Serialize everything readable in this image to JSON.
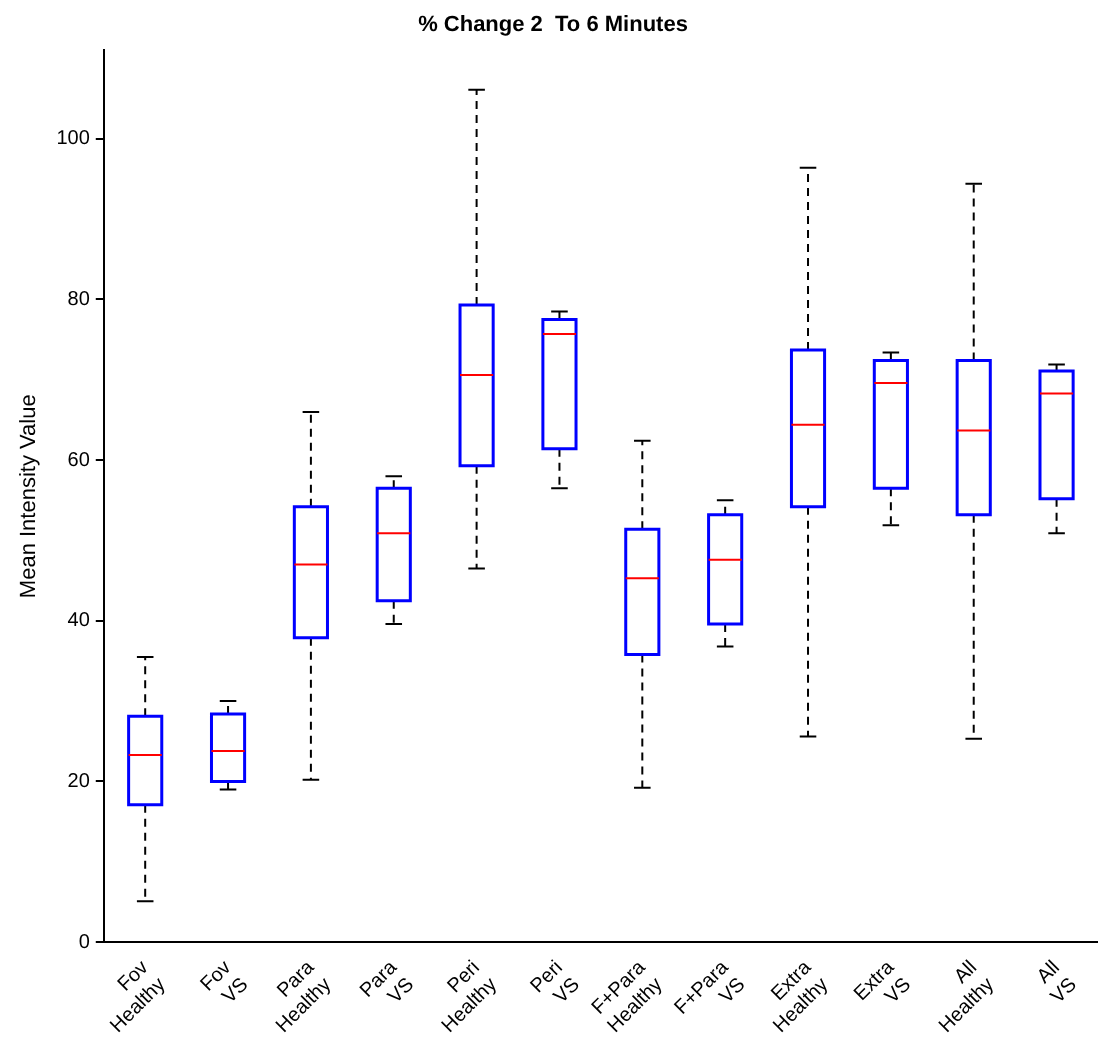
{
  "chart_data": {
    "type": "box",
    "title": "% Change 2  To 6 Minutes",
    "ylabel": "Mean Intensity Value",
    "categories": [
      "Fov Healthy",
      "Fov VS",
      "Para Healthy",
      "Para VS",
      "Peri Healthy",
      "Peri VS",
      "F+Para Healthy",
      "F+Para VS",
      "Extra Healthy",
      "Extra VS",
      "All Healthy",
      "All VS"
    ],
    "color": "#0000ff",
    "boxes": [
      {
        "low": 5.1,
        "q1": 17.1,
        "median": 23.3,
        "q3": 28.1,
        "high": 35.5
      },
      {
        "low": 19,
        "q1": 20,
        "median": 23.8,
        "q3": 28.4,
        "high": 30
      },
      {
        "low": 20.2,
        "q1": 37.9,
        "median": 47,
        "q3": 54.2,
        "high": 66
      },
      {
        "low": 39.6,
        "q1": 42.5,
        "median": 50.9,
        "q3": 56.5,
        "high": 58
      },
      {
        "low": 46.5,
        "q1": 59.3,
        "median": 70.6,
        "q3": 79.3,
        "high": 106.1
      },
      {
        "low": 56.5,
        "q1": 61.4,
        "median": 75.7,
        "q3": 77.5,
        "high": 78.5
      },
      {
        "low": 19.2,
        "q1": 35.8,
        "median": 45.3,
        "q3": 51.4,
        "high": 62.4
      },
      {
        "low": 36.8,
        "q1": 39.6,
        "median": 47.6,
        "q3": 53.2,
        "high": 55
      },
      {
        "low": 25.6,
        "q1": 54.2,
        "median": 64.4,
        "q3": 73.7,
        "high": 96.4
      },
      {
        "low": 51.9,
        "q1": 56.5,
        "median": 69.6,
        "q3": 72.4,
        "high": 73.4
      },
      {
        "low": 25.3,
        "q1": 53.2,
        "median": 63.7,
        "q3": 72.4,
        "high": 94.4
      },
      {
        "low": 50.9,
        "q1": 55.2,
        "median": 68.3,
        "q3": 71.1,
        "high": 71.9
      }
    ],
    "ylim": [
      0,
      111
    ],
    "yticks": [
      0,
      20,
      40,
      60,
      80,
      100
    ],
    "grid": false,
    "legend": false
  }
}
